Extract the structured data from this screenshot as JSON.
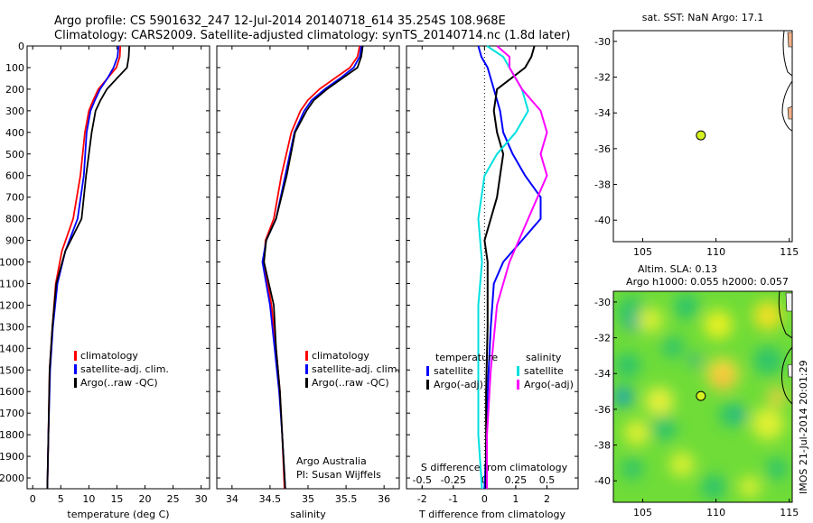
{
  "header": {
    "line1": "Argo profile: CS 5901632_247 12-Jul-2014 20140718_614 35.254S 108.968E",
    "line2": "Climatology: CARS2009. Satellite-adjusted climatology: synTS_20140714.nc (1.8d later)"
  },
  "side_credit": "IMOS 21-Jul-2014 20:01:29",
  "colors": {
    "climatology": "#ff0000",
    "satellite": "#0000ff",
    "argo": "#000000",
    "sat_sal": "#00e0e0",
    "argo_sal": "#ff00ff"
  },
  "chart_data": [
    {
      "id": "temperature",
      "type": "line",
      "xlabel": "temperature (deg C)",
      "ylabel": "",
      "xlim": [
        -1,
        31.5
      ],
      "ylim": [
        2050,
        0
      ],
      "xticks": [
        "0",
        "5",
        "10",
        "15",
        "20",
        "25",
        "30"
      ],
      "yticks": [
        "0",
        "100",
        "200",
        "300",
        "400",
        "500",
        "600",
        "700",
        "800",
        "900",
        "1000",
        "1100",
        "1200",
        "1300",
        "1400",
        "1500",
        "1600",
        "1700",
        "1800",
        "1900",
        "2000"
      ],
      "legend": [
        "climatology",
        "satellite-adj. clim.",
        "Argo(..raw -QC)"
      ],
      "series": [
        {
          "name": "climatology",
          "color": "#ff0000",
          "x": [
            15.6,
            15.5,
            14.9,
            13.3,
            11.7,
            10.8,
            10.0,
            9.3,
            8.5,
            7.2,
            5.2,
            4.1,
            3.5,
            3.0,
            2.8,
            2.6
          ],
          "y": [
            0,
            50,
            100,
            150,
            200,
            250,
            300,
            400,
            600,
            800,
            950,
            1100,
            1300,
            1500,
            1800,
            2050
          ]
        },
        {
          "name": "satellite-adj. clim.",
          "color": "#0000ff",
          "x": [
            15.3,
            15.1,
            14.4,
            13.3,
            12.0,
            11.1,
            10.3,
            9.6,
            9.1,
            8.0,
            5.8,
            4.4,
            3.6,
            3.1,
            2.8,
            2.6
          ],
          "y": [
            0,
            50,
            100,
            150,
            200,
            250,
            300,
            400,
            600,
            800,
            950,
            1100,
            1300,
            1500,
            1800,
            2050
          ]
        },
        {
          "name": "Argo(..raw -QC)",
          "color": "#000000",
          "x": [
            17.2,
            17.1,
            16.8,
            15.0,
            13.2,
            12.1,
            11.2,
            10.5,
            9.5,
            8.7,
            5.8,
            4.2,
            3.5,
            3.0,
            2.8,
            2.6
          ],
          "y": [
            0,
            50,
            100,
            150,
            200,
            250,
            300,
            400,
            600,
            800,
            950,
            1100,
            1300,
            1500,
            1800,
            2050
          ]
        }
      ]
    },
    {
      "id": "salinity",
      "type": "line",
      "xlabel": "salinity",
      "xlim": [
        33.8,
        36.2
      ],
      "ylim": [
        2050,
        0
      ],
      "xticks": [
        "34",
        "34.5",
        "35",
        "35.5",
        "36"
      ],
      "legend": [
        "climatology",
        "satellite-adj. clim.",
        "Argo(..raw -QC)"
      ],
      "annotation": [
        "Argo Australia",
        "PI: Susan Wijffels"
      ],
      "series": [
        {
          "name": "climatology",
          "color": "#ff0000",
          "x": [
            35.68,
            35.65,
            35.55,
            35.35,
            35.15,
            35.0,
            34.9,
            34.78,
            34.65,
            34.55,
            34.44,
            34.42,
            34.52,
            34.58,
            34.63,
            34.66,
            34.69
          ],
          "y": [
            0,
            50,
            100,
            150,
            200,
            250,
            300,
            400,
            600,
            800,
            900,
            1000,
            1200,
            1400,
            1600,
            1800,
            2050
          ]
        },
        {
          "name": "satellite-adj. clim.",
          "color": "#0000ff",
          "x": [
            35.7,
            35.68,
            35.6,
            35.42,
            35.22,
            35.05,
            34.95,
            34.82,
            34.7,
            34.58,
            34.45,
            34.4,
            34.5,
            34.56,
            34.62,
            34.66,
            34.7
          ],
          "y": [
            0,
            50,
            100,
            150,
            200,
            250,
            300,
            400,
            600,
            800,
            900,
            1000,
            1200,
            1400,
            1600,
            1800,
            2050
          ]
        },
        {
          "name": "Argo(..raw -QC)",
          "color": "#000000",
          "x": [
            35.72,
            35.7,
            35.65,
            35.45,
            35.25,
            35.08,
            34.98,
            34.83,
            34.72,
            34.58,
            34.45,
            34.42,
            34.55,
            34.58,
            34.63,
            34.66,
            34.7
          ],
          "y": [
            0,
            50,
            100,
            150,
            200,
            250,
            300,
            400,
            600,
            800,
            900,
            1000,
            1200,
            1400,
            1600,
            1800,
            2050
          ]
        }
      ]
    },
    {
      "id": "difference",
      "type": "line",
      "xlabel": "T difference from climatology",
      "xlabel2": "S difference from climatology",
      "xlim": [
        -2.5,
        3.0
      ],
      "ylim": [
        2050,
        0
      ],
      "xticks": [
        "-2",
        "-1",
        "0",
        "1",
        "2"
      ],
      "xticks2": [
        "-0.5",
        "-0.25",
        "0",
        "0.25",
        "0.5"
      ],
      "legend_titles": [
        "temperature",
        "salinity"
      ],
      "legend": [
        "satellite",
        "Argo(-adj)",
        "satellite",
        "Argo(-adj)"
      ],
      "series": [
        {
          "name": "temperature satellite",
          "color": "#0000ff",
          "x": [
            -0.2,
            -0.1,
            0.1,
            0.3,
            0.5,
            0.6,
            0.9,
            1.3,
            1.8,
            1.8,
            1.2,
            0.6,
            0.3,
            0.2,
            0.1,
            0.05,
            0.0
          ],
          "y": [
            0,
            50,
            100,
            200,
            300,
            400,
            500,
            600,
            700,
            800,
            900,
            1000,
            1100,
            1300,
            1600,
            1900,
            2050
          ]
        },
        {
          "name": "temperature Argo(-adj)",
          "color": "#000000",
          "x": [
            1.6,
            1.5,
            1.3,
            0.4,
            0.3,
            0.4,
            0.6,
            0.5,
            0.4,
            0.2,
            0.0,
            0.1,
            0.1,
            0.1,
            0.05,
            0.05,
            0.05
          ],
          "y": [
            0,
            50,
            100,
            200,
            300,
            400,
            500,
            600,
            700,
            800,
            900,
            1000,
            1100,
            1300,
            1600,
            1900,
            2050
          ]
        },
        {
          "name": "salinity satellite",
          "color": "#00e0e0",
          "x": [
            0.02,
            0.15,
            0.2,
            0.3,
            0.35,
            0.25,
            0.1,
            0.0,
            -0.05,
            -0.02,
            -0.05,
            -0.05,
            -0.05,
            -0.02
          ],
          "y": [
            0,
            50,
            100,
            200,
            300,
            400,
            500,
            600,
            800,
            1000,
            1200,
            1500,
            1800,
            2050
          ]
        },
        {
          "name": "salinity Argo(-adj)",
          "color": "#ff00ff",
          "x": [
            0.1,
            0.2,
            0.2,
            0.3,
            0.45,
            0.5,
            0.45,
            0.5,
            0.35,
            0.2,
            0.1,
            0.05,
            0.02,
            0.02
          ],
          "y": [
            0,
            50,
            100,
            200,
            300,
            400,
            500,
            600,
            800,
            1000,
            1200,
            1500,
            1800,
            2050
          ]
        }
      ]
    },
    {
      "id": "sst_map",
      "type": "scatter",
      "title": "sat. SST: NaN Argo: 17.1",
      "xlim": [
        103,
        115.2
      ],
      "ylim": [
        -41.2,
        -29.4
      ],
      "xticks": [
        "105",
        "110",
        "115"
      ],
      "yticks": [
        "-30",
        "-32",
        "-34",
        "-36",
        "-38",
        "-40"
      ],
      "x": [
        108.968
      ],
      "y": [
        -35.254
      ]
    },
    {
      "id": "sla_map",
      "type": "heatmap",
      "title": "Altim. SLA: 0.13",
      "subtitle": "Argo h1000: 0.055 h2000: 0.057",
      "xlim": [
        103,
        115.2
      ],
      "ylim": [
        -41.2,
        -29.4
      ],
      "xticks": [
        "105",
        "110",
        "115"
      ],
      "yticks": [
        "-30",
        "-32",
        "-34",
        "-36",
        "-38",
        "-40"
      ],
      "x": [
        108.968
      ],
      "y": [
        -35.254
      ]
    }
  ]
}
